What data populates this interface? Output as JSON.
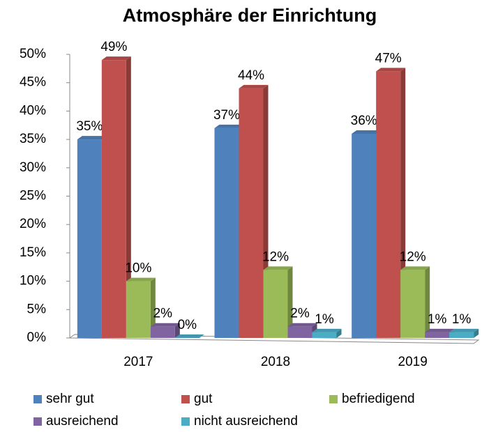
{
  "chart_data": {
    "type": "bar3d",
    "title": "Atmosphäre der Einrichtung",
    "categories": [
      "2017",
      "2018",
      "2019"
    ],
    "series": [
      {
        "name": "sehr gut",
        "color": "#4f81bd",
        "values": [
          35,
          37,
          36
        ],
        "value_labels": [
          "35%",
          "37%",
          "36%"
        ]
      },
      {
        "name": "gut",
        "color": "#c0504d",
        "values": [
          49,
          44,
          47
        ],
        "value_labels": [
          "49%",
          "44%",
          "47%"
        ]
      },
      {
        "name": "befriedigend",
        "color": "#9bbb59",
        "values": [
          10,
          12,
          12
        ],
        "value_labels": [
          "10%",
          "12%",
          "12%"
        ]
      },
      {
        "name": "ausreichend",
        "color": "#8064a2",
        "values": [
          2,
          2,
          1
        ],
        "value_labels": [
          "2%",
          "2%",
          "1%"
        ]
      },
      {
        "name": "nicht ausreichend",
        "color": "#4bacc6",
        "values": [
          0,
          1,
          1
        ],
        "value_labels": [
          "0%",
          "1%",
          "1%"
        ]
      }
    ],
    "ylim": [
      0,
      50
    ],
    "yticks": [
      {
        "value": 0,
        "label": "0%"
      },
      {
        "value": 5,
        "label": "5%"
      },
      {
        "value": 10,
        "label": "10%"
      },
      {
        "value": 15,
        "label": "15%"
      },
      {
        "value": 20,
        "label": "20%"
      },
      {
        "value": 25,
        "label": "25%"
      },
      {
        "value": 30,
        "label": "30%"
      },
      {
        "value": 35,
        "label": "35%"
      },
      {
        "value": 40,
        "label": "40%"
      },
      {
        "value": 45,
        "label": "45%"
      },
      {
        "value": 50,
        "label": "50%"
      }
    ],
    "legend": "bottom"
  }
}
